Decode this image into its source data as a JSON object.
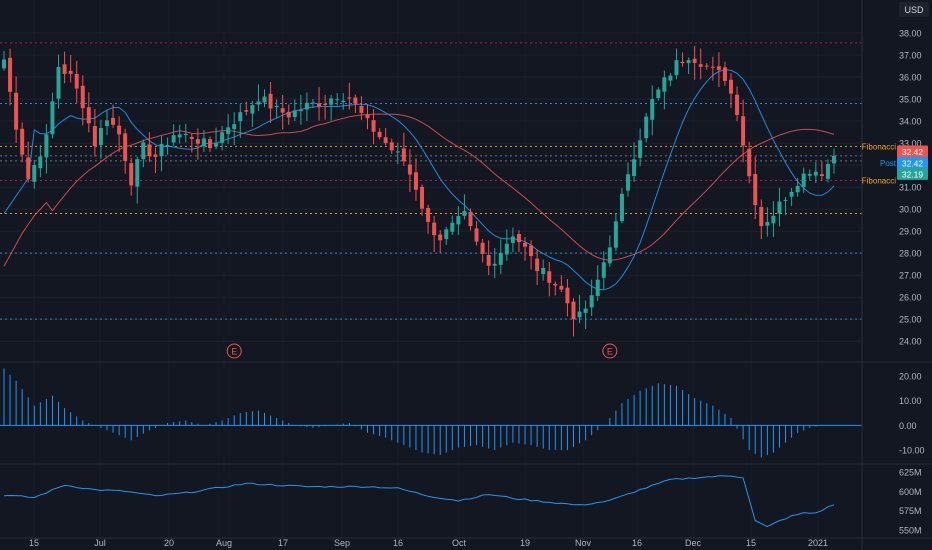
{
  "header": {
    "currency": "USD"
  },
  "chart_data": {
    "type": "candlestick",
    "x_tick_labels": [
      "15",
      "Jul",
      "20",
      "Aug",
      "17",
      "Sep",
      "16",
      "Oct",
      "19",
      "Nov",
      "16",
      "Dec",
      "15",
      "2021"
    ],
    "price_axis": {
      "ticks": [
        "38.00",
        "37.00",
        "36.00",
        "35.00",
        "34.00",
        "33.00",
        "32.00",
        "31.00",
        "30.00",
        "29.00",
        "28.00",
        "27.00",
        "26.00",
        "25.00",
        "24.00"
      ],
      "range": [
        23.6,
        38.5
      ]
    },
    "horizontal_levels": [
      {
        "price": 37.55,
        "color": "#c2185b",
        "style": "dotted"
      },
      {
        "price": 34.8,
        "color": "#2196f3",
        "style": "dotted"
      },
      {
        "price": 32.85,
        "color": "#f7a325",
        "style": "dotted"
      },
      {
        "price": 32.42,
        "color": "#787b86",
        "style": "dotted"
      },
      {
        "price": 32.19,
        "color": "#787b86",
        "style": "dotted"
      },
      {
        "price": 31.3,
        "color": "#c2185b",
        "style": "dotted"
      },
      {
        "price": 29.8,
        "color": "#f7a325",
        "style": "dotted"
      },
      {
        "price": 28.0,
        "color": "#2196f3",
        "style": "dotted"
      },
      {
        "price": 25.0,
        "color": "#2196f3",
        "style": "dotted"
      }
    ],
    "price_labels": [
      {
        "text": "Fibonacci",
        "price": 32.85,
        "color": "#f7a325"
      },
      {
        "text": "Fibonacci",
        "price": 31.3,
        "color": "#f7a325"
      },
      {
        "text": "Post",
        "price": 32.1,
        "color": "#2196f3"
      }
    ],
    "price_badges": [
      {
        "text": "32.42",
        "price": 32.62,
        "color": "#ef5350"
      },
      {
        "text": "32.42",
        "price": 32.1,
        "color": "#2196f3"
      },
      {
        "text": "32.19",
        "price": 31.6,
        "color": "#26a69a"
      }
    ],
    "earnings_markers": [
      "E",
      "E"
    ],
    "earnings_marker_x_index": [
      38,
      100
    ],
    "up_color": "#26a69a",
    "down_color": "#ef5350",
    "ma_fast_color": "#2196f3",
    "ma_slow_color": "#ef5350",
    "close_key": [
      [
        0,
        36.8
      ],
      [
        2,
        33.8
      ],
      [
        4,
        31.4
      ],
      [
        7,
        33.2
      ],
      [
        9,
        36.5
      ],
      [
        11,
        36.0
      ],
      [
        13,
        34.8
      ],
      [
        15,
        33.0
      ],
      [
        17,
        34.2
      ],
      [
        19,
        33.4
      ],
      [
        21,
        31.3
      ],
      [
        23,
        32.8
      ],
      [
        25,
        32.4
      ],
      [
        28,
        33.4
      ],
      [
        31,
        33.3
      ],
      [
        34,
        32.8
      ],
      [
        37,
        33.8
      ],
      [
        40,
        34.5
      ],
      [
        42,
        35.1
      ],
      [
        45,
        34.5
      ],
      [
        47,
        34.3
      ],
      [
        50,
        34.7
      ],
      [
        53,
        34.9
      ],
      [
        55,
        35.2
      ],
      [
        57,
        35.1
      ],
      [
        60,
        33.9
      ],
      [
        62,
        33.3
      ],
      [
        64,
        32.7
      ],
      [
        66,
        32.2
      ],
      [
        68,
        31.0
      ],
      [
        70,
        29.3
      ],
      [
        72,
        28.7
      ],
      [
        74,
        29.2
      ],
      [
        76,
        29.7
      ],
      [
        78,
        28.4
      ],
      [
        80,
        27.4
      ],
      [
        82,
        28.1
      ],
      [
        84,
        28.9
      ],
      [
        86,
        28.2
      ],
      [
        88,
        27.3
      ],
      [
        90,
        26.9
      ],
      [
        92,
        26.3
      ],
      [
        94,
        25.2
      ],
      [
        95,
        25.1
      ],
      [
        97,
        25.9
      ],
      [
        99,
        27.6
      ],
      [
        101,
        29.3
      ],
      [
        103,
        31.7
      ],
      [
        105,
        33.3
      ],
      [
        107,
        34.9
      ],
      [
        109,
        35.8
      ],
      [
        111,
        36.6
      ],
      [
        113,
        37.0
      ],
      [
        115,
        36.7
      ],
      [
        117,
        36.3
      ],
      [
        119,
        36.0
      ],
      [
        121,
        34.5
      ],
      [
        123,
        31.5
      ],
      [
        125,
        29.3
      ],
      [
        127,
        29.8
      ],
      [
        129,
        30.6
      ],
      [
        131,
        31.3
      ],
      [
        133,
        31.8
      ],
      [
        135,
        31.7
      ],
      [
        137,
        32.42
      ]
    ],
    "macd": {
      "axis_ticks": [
        "20.00",
        "10.00",
        "0.00",
        "-10.00"
      ],
      "range": [
        -14,
        24
      ],
      "key": [
        [
          0,
          23
        ],
        [
          2,
          18
        ],
        [
          5,
          8
        ],
        [
          8,
          12
        ],
        [
          10,
          7
        ],
        [
          13,
          2
        ],
        [
          16,
          -1
        ],
        [
          19,
          -4
        ],
        [
          21,
          -6
        ],
        [
          24,
          -2
        ],
        [
          27,
          1
        ],
        [
          30,
          2
        ],
        [
          33,
          0
        ],
        [
          36,
          2
        ],
        [
          39,
          5
        ],
        [
          42,
          6
        ],
        [
          45,
          3
        ],
        [
          48,
          0
        ],
        [
          51,
          -1
        ],
        [
          54,
          0
        ],
        [
          57,
          1
        ],
        [
          60,
          -3
        ],
        [
          63,
          -5
        ],
        [
          66,
          -8
        ],
        [
          69,
          -11
        ],
        [
          72,
          -12
        ],
        [
          75,
          -9
        ],
        [
          78,
          -8
        ],
        [
          81,
          -10
        ],
        [
          84,
          -7
        ],
        [
          87,
          -8
        ],
        [
          90,
          -10
        ],
        [
          93,
          -10
        ],
        [
          96,
          -6
        ],
        [
          99,
          0
        ],
        [
          102,
          9
        ],
        [
          105,
          14
        ],
        [
          108,
          17
        ],
        [
          111,
          16
        ],
        [
          114,
          11
        ],
        [
          117,
          8
        ],
        [
          120,
          3
        ],
        [
          123,
          -10
        ],
        [
          125,
          -13
        ],
        [
          127,
          -11
        ],
        [
          129,
          -7
        ],
        [
          131,
          -3
        ],
        [
          133,
          -1
        ],
        [
          135,
          0
        ],
        [
          137,
          0
        ]
      ]
    },
    "indicator2": {
      "axis_ticks": [
        "625M",
        "600M",
        "575M",
        "550M"
      ],
      "range": [
        545,
        630
      ],
      "key": [
        [
          0,
          595
        ],
        [
          5,
          592
        ],
        [
          10,
          608
        ],
        [
          15,
          602
        ],
        [
          20,
          600
        ],
        [
          25,
          594
        ],
        [
          30,
          598
        ],
        [
          35,
          604
        ],
        [
          40,
          610
        ],
        [
          45,
          608
        ],
        [
          50,
          606
        ],
        [
          55,
          606
        ],
        [
          60,
          606
        ],
        [
          65,
          604
        ],
        [
          70,
          594
        ],
        [
          75,
          588
        ],
        [
          80,
          596
        ],
        [
          85,
          590
        ],
        [
          90,
          586
        ],
        [
          95,
          582
        ],
        [
          100,
          588
        ],
        [
          105,
          602
        ],
        [
          110,
          615
        ],
        [
          115,
          618
        ],
        [
          120,
          620
        ],
        [
          122,
          618
        ],
        [
          124,
          562
        ],
        [
          126,
          554
        ],
        [
          128,
          562
        ],
        [
          130,
          568
        ],
        [
          132,
          572
        ],
        [
          134,
          572
        ],
        [
          137,
          583
        ]
      ]
    }
  }
}
